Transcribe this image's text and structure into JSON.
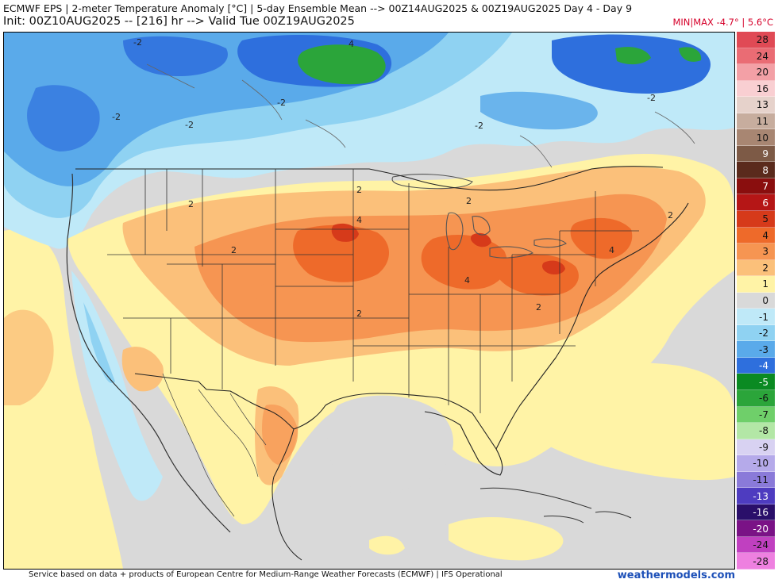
{
  "header": {
    "title": "ECMWF EPS | 2-meter Temperature Anomaly [°C] | 5-day Ensemble Mean --> 00Z14AUG2025 & 00Z19AUG2025   Day 4 - Day 9",
    "init": "Init: 00Z10AUG2025 -- [216] hr --> Valid Tue 00Z19AUG2025",
    "minmax": "MIN|MAX -4.7° | 5.6°C"
  },
  "colorbar": {
    "levels": [
      {
        "label": "28",
        "color": "#e04a55"
      },
      {
        "label": "24",
        "color": "#ea6c74"
      },
      {
        "label": "20",
        "color": "#f3a0a6"
      },
      {
        "label": "16",
        "color": "#f9cfd2"
      },
      {
        "label": "13",
        "color": "#e6d2cb"
      },
      {
        "label": "11",
        "color": "#c7ad9e"
      },
      {
        "label": "10",
        "color": "#a88672"
      },
      {
        "label": "9",
        "color": "#7d5a46"
      },
      {
        "label": "8",
        "color": "#5a2a1c"
      },
      {
        "label": "7",
        "color": "#8a0e0e"
      },
      {
        "label": "6",
        "color": "#b51616"
      },
      {
        "label": "5",
        "color": "#d63a1a"
      },
      {
        "label": "4",
        "color": "#ee6a2a"
      },
      {
        "label": "3",
        "color": "#f69552"
      },
      {
        "label": "2",
        "color": "#fbc07a"
      },
      {
        "label": "1",
        "color": "#fff3a6"
      },
      {
        "label": "0",
        "color": "#d9d9d9"
      },
      {
        "label": "-1",
        "color": "#bfe9f8"
      },
      {
        "label": "-2",
        "color": "#8fd2f2"
      },
      {
        "label": "-3",
        "color": "#5aaaea"
      },
      {
        "label": "-4",
        "color": "#2e6fdd"
      },
      {
        "label": "-5",
        "color": "#0a8a22"
      },
      {
        "label": "-6",
        "color": "#2ba53a"
      },
      {
        "label": "-7",
        "color": "#6fcf6a"
      },
      {
        "label": "-8",
        "color": "#b3e7a6"
      },
      {
        "label": "-9",
        "color": "#d8d2f2"
      },
      {
        "label": "-10",
        "color": "#b5aaea"
      },
      {
        "label": "-11",
        "color": "#8a7ad9"
      },
      {
        "label": "-13",
        "color": "#4e3cc0"
      },
      {
        "label": "-16",
        "color": "#2a0f6a"
      },
      {
        "label": "-20",
        "color": "#7a1286"
      },
      {
        "label": "-24",
        "color": "#c040c0"
      },
      {
        "label": "-28",
        "color": "#ee80e0"
      }
    ]
  },
  "map": {
    "contour_labels": [
      {
        "text": "-2"
      },
      {
        "text": "4"
      },
      {
        "text": "-2"
      },
      {
        "text": "-2"
      },
      {
        "text": "-2"
      },
      {
        "text": "-2"
      },
      {
        "text": "-2"
      },
      {
        "text": "2"
      },
      {
        "text": "2"
      },
      {
        "text": "2"
      },
      {
        "text": "4"
      },
      {
        "text": "2"
      },
      {
        "text": "4"
      },
      {
        "text": "2"
      },
      {
        "text": "2"
      },
      {
        "text": "2"
      },
      {
        "text": "4"
      }
    ]
  },
  "footer": {
    "credit": "Service based on data + products of European Centre for Medium-Range Weather Forecasts (ECMWF) | IFS Operational",
    "brand": "weathermodels.com"
  }
}
